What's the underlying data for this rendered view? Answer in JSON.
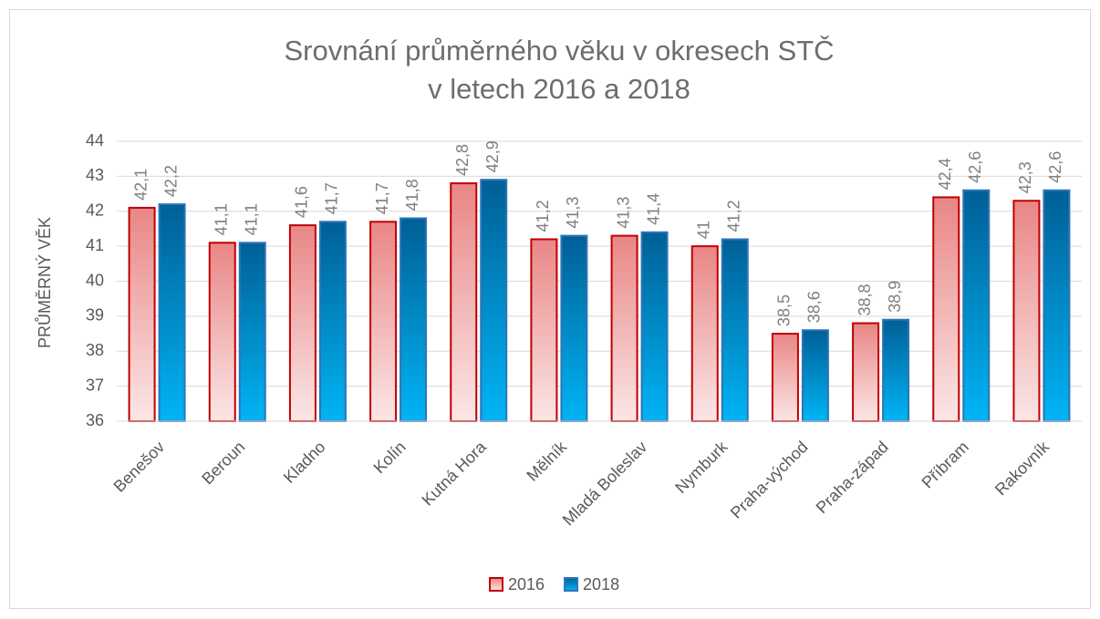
{
  "chart_data": {
    "type": "bar",
    "title": [
      "Srovnání průměrného věku v okresech STČ",
      "v letech 2016 a 2018"
    ],
    "y_label": "PRŮMĚRNÝ VĚK",
    "categories": [
      "Benešov",
      "Beroun",
      "Kladno",
      "Kolín",
      "Kutná Hora",
      "Mělník",
      "Mladá Boleslav",
      "Nymburk",
      "Praha-východ",
      "Praha-západ",
      "Příbram",
      "Rakovník"
    ],
    "series": [
      {
        "name": "2016",
        "color": "#c00000",
        "values": [
          42.1,
          41.1,
          41.6,
          41.7,
          42.8,
          41.2,
          41.3,
          41,
          38.5,
          38.8,
          42.4,
          42.3
        ],
        "value_labels": [
          "42,1",
          "41,1",
          "41,6",
          "41,7",
          "42,8",
          "41,2",
          "41,3",
          "41",
          "38,5",
          "38,8",
          "42,4",
          "42,3"
        ]
      },
      {
        "name": "2018",
        "color": "#2e75b6",
        "values": [
          42.2,
          41.1,
          41.7,
          41.8,
          42.9,
          41.3,
          41.4,
          41.2,
          38.6,
          38.9,
          42.6,
          42.6
        ],
        "value_labels": [
          "42,2",
          "41,1",
          "41,7",
          "41,8",
          "42,9",
          "41,3",
          "41,4",
          "41,2",
          "38,6",
          "38,9",
          "42,6",
          "42,6"
        ]
      }
    ],
    "ylim": [
      36,
      44
    ],
    "yticks": [
      36,
      37,
      38,
      39,
      40,
      41,
      42,
      43,
      44
    ],
    "grid": true,
    "legend": "bottom"
  }
}
